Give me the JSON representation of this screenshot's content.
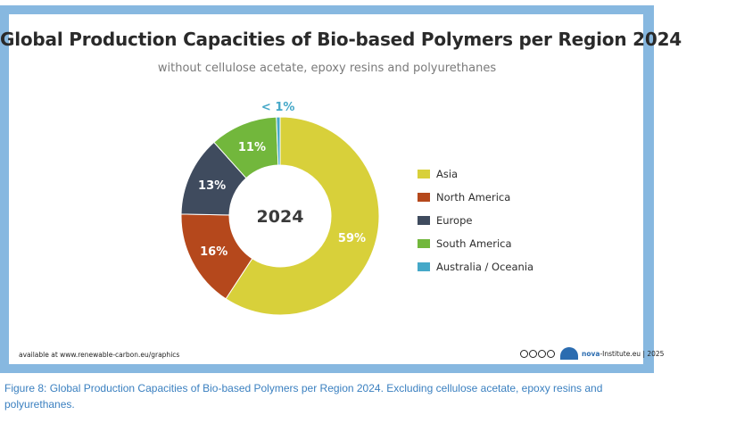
{
  "chart_data": {
    "type": "pie",
    "variant": "donut",
    "title": "Global Production Capacities of Bio-based Polymers per Region 2024",
    "subtitle": "without cellulose acetate, epoxy resins and polyurethanes",
    "center_label": "2024",
    "slices": [
      {
        "name": "Asia",
        "value": 59,
        "label": "59%",
        "color": "#d8d03a"
      },
      {
        "name": "North America",
        "value": 16,
        "label": "16%",
        "color": "#b5481c"
      },
      {
        "name": "Europe",
        "value": 13,
        "label": "13%",
        "color": "#3f4b5e"
      },
      {
        "name": "South America",
        "value": 11,
        "label": "11%",
        "color": "#72b73c"
      },
      {
        "name": "Australia / Oceania",
        "value": 0.6,
        "label": "< 1%",
        "color": "#45a8c8"
      }
    ],
    "legend_position": "right"
  },
  "footer": {
    "source": "available at www.renewable-carbon.eu/graphics",
    "logo_text": "nova",
    "credit": "-Institute.eu | 2025"
  },
  "caption": {
    "label": "Figure 8:",
    "text": "Global Production Capacities of Bio-based Polymers per Region 2024. Excluding cellulose acetate, epoxy resins and polyurethanes."
  }
}
